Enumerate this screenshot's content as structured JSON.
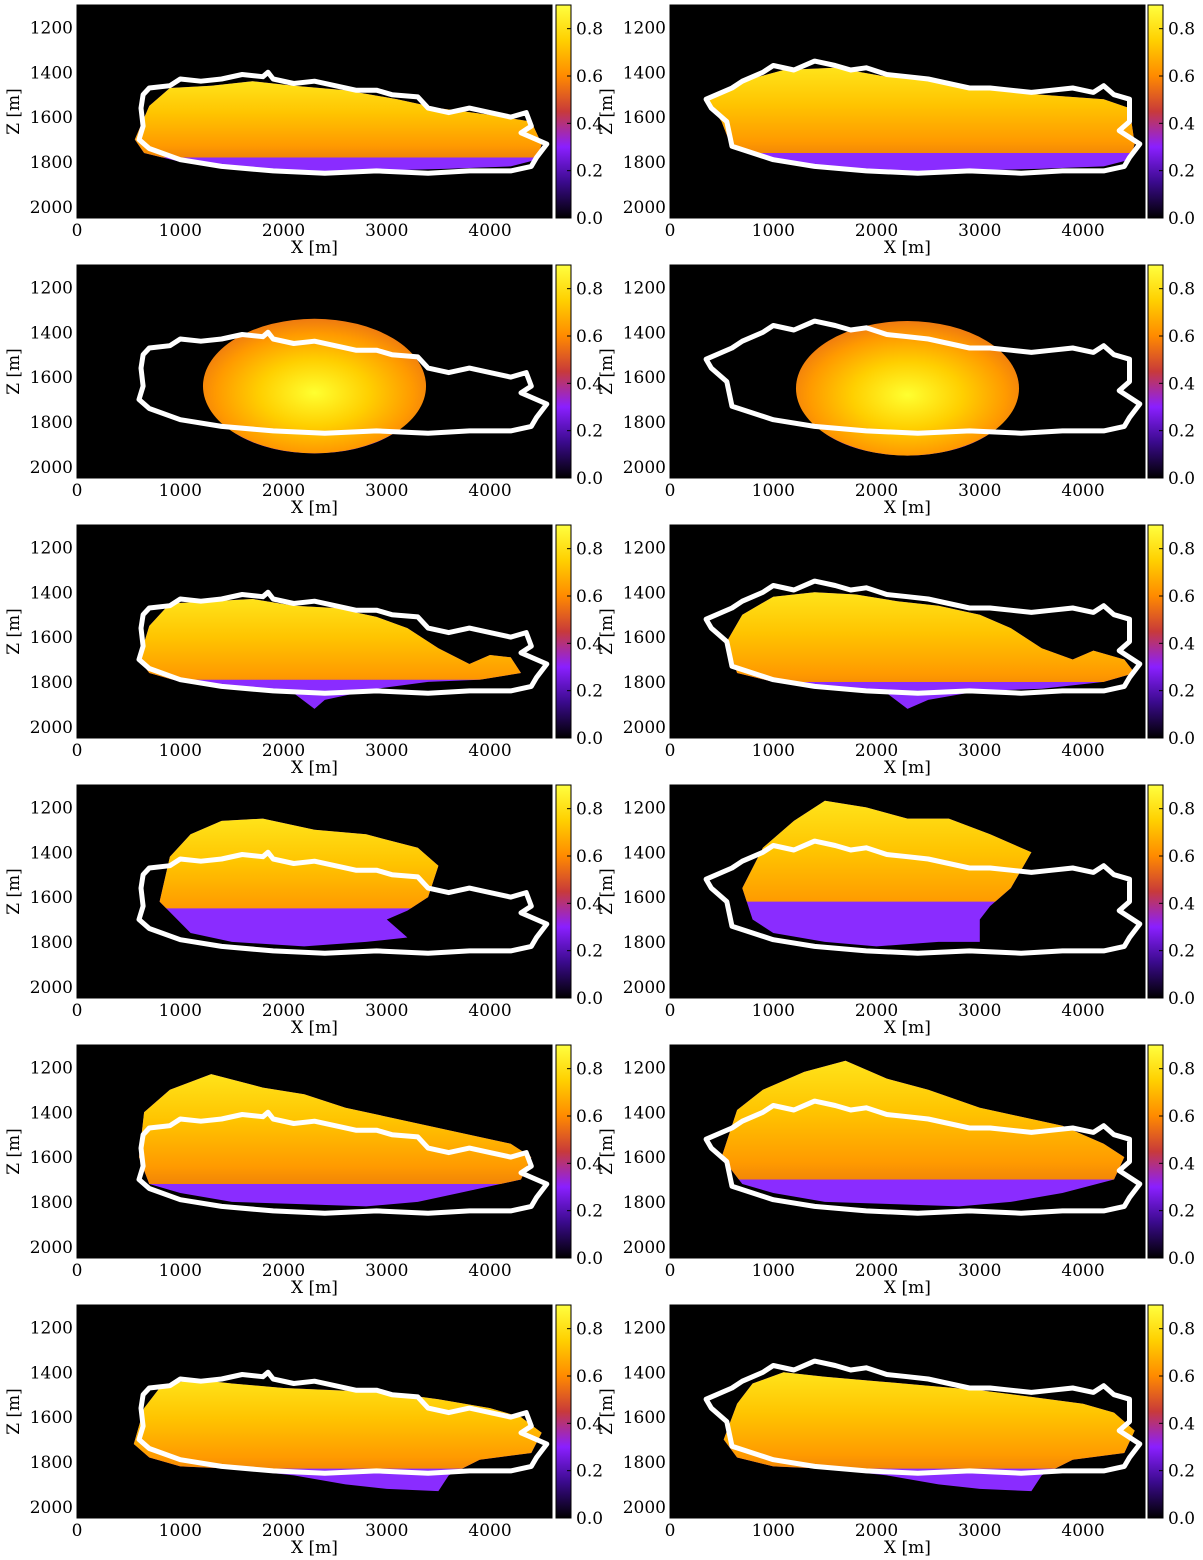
{
  "chart_data": {
    "type": "heatmap",
    "layout": {
      "rows": 6,
      "cols": 2
    },
    "shared": {
      "xlabel": "X [m]",
      "ylabel": "Z [m]",
      "xlim": [
        0,
        4600
      ],
      "ylim": [
        2050,
        1100
      ],
      "xticks": [
        0,
        1000,
        2000,
        3000,
        4000
      ],
      "yticks": [
        1200,
        1400,
        1600,
        1800,
        2000
      ],
      "colorbar": {
        "range": [
          0,
          0.9
        ],
        "ticks": [
          "0.0",
          "0.2",
          "0.4",
          "0.6",
          "0.8"
        ]
      },
      "colormap": [
        "#000000",
        "#3a0a8c",
        "#8a1fff",
        "#c83a3a",
        "#ff8a00",
        "#ffd000",
        "#ffff40"
      ],
      "background": "#000000",
      "contour_color": "#ffffff"
    },
    "reference_outline": {
      "left": [
        [
          600,
          1700
        ],
        [
          640,
          1640
        ],
        [
          620,
          1560
        ],
        [
          640,
          1500
        ],
        [
          700,
          1470
        ],
        [
          900,
          1460
        ],
        [
          1000,
          1430
        ],
        [
          1200,
          1440
        ],
        [
          1400,
          1430
        ],
        [
          1600,
          1410
        ],
        [
          1800,
          1420
        ],
        [
          1850,
          1400
        ],
        [
          1900,
          1430
        ],
        [
          2100,
          1450
        ],
        [
          2300,
          1440
        ],
        [
          2500,
          1460
        ],
        [
          2700,
          1480
        ],
        [
          2900,
          1480
        ],
        [
          3050,
          1500
        ],
        [
          3300,
          1510
        ],
        [
          3400,
          1560
        ],
        [
          3600,
          1580
        ],
        [
          3800,
          1560
        ],
        [
          4000,
          1580
        ],
        [
          4200,
          1600
        ],
        [
          4350,
          1580
        ],
        [
          4400,
          1640
        ],
        [
          4300,
          1670
        ],
        [
          4550,
          1720
        ],
        [
          4450,
          1780
        ],
        [
          4400,
          1820
        ],
        [
          4200,
          1840
        ],
        [
          3800,
          1840
        ],
        [
          3400,
          1850
        ],
        [
          2900,
          1840
        ],
        [
          2400,
          1850
        ],
        [
          1900,
          1840
        ],
        [
          1400,
          1820
        ],
        [
          1000,
          1790
        ],
        [
          700,
          1740
        ]
      ],
      "right": [
        [
          350,
          1520
        ],
        [
          600,
          1470
        ],
        [
          700,
          1440
        ],
        [
          900,
          1400
        ],
        [
          1000,
          1370
        ],
        [
          1200,
          1390
        ],
        [
          1400,
          1350
        ],
        [
          1600,
          1370
        ],
        [
          1750,
          1390
        ],
        [
          1900,
          1380
        ],
        [
          2100,
          1410
        ],
        [
          2300,
          1420
        ],
        [
          2500,
          1430
        ],
        [
          2700,
          1450
        ],
        [
          2900,
          1470
        ],
        [
          3100,
          1470
        ],
        [
          3300,
          1480
        ],
        [
          3500,
          1490
        ],
        [
          3700,
          1480
        ],
        [
          3900,
          1470
        ],
        [
          4100,
          1490
        ],
        [
          4200,
          1460
        ],
        [
          4300,
          1500
        ],
        [
          4450,
          1520
        ],
        [
          4450,
          1620
        ],
        [
          4350,
          1660
        ],
        [
          4550,
          1720
        ],
        [
          4450,
          1780
        ],
        [
          4400,
          1820
        ],
        [
          4200,
          1840
        ],
        [
          3800,
          1840
        ],
        [
          3400,
          1850
        ],
        [
          2900,
          1840
        ],
        [
          2400,
          1850
        ],
        [
          1900,
          1840
        ],
        [
          1400,
          1820
        ],
        [
          1000,
          1790
        ],
        [
          600,
          1730
        ],
        [
          550,
          1620
        ],
        [
          400,
          1560
        ]
      ]
    },
    "panels": [
      {
        "row": 1,
        "col": 1,
        "fill": [
          [
            560,
            1700
          ],
          [
            700,
            1550
          ],
          [
            900,
            1470
          ],
          [
            1300,
            1460
          ],
          [
            1700,
            1440
          ],
          [
            2100,
            1460
          ],
          [
            2600,
            1480
          ],
          [
            3100,
            1520
          ],
          [
            3500,
            1560
          ],
          [
            4000,
            1590
          ],
          [
            4400,
            1620
          ],
          [
            4500,
            1720
          ],
          [
            4450,
            1790
          ],
          [
            4200,
            1820
          ],
          [
            3600,
            1830
          ],
          [
            2800,
            1840
          ],
          [
            2100,
            1850
          ],
          [
            1500,
            1830
          ],
          [
            1000,
            1800
          ],
          [
            650,
            1760
          ]
        ],
        "purple_floor_z": 1780
      },
      {
        "row": 1,
        "col": 2,
        "fill": [
          [
            350,
            1520
          ],
          [
            700,
            1440
          ],
          [
            1100,
            1390
          ],
          [
            1600,
            1380
          ],
          [
            2100,
            1420
          ],
          [
            2600,
            1440
          ],
          [
            3100,
            1480
          ],
          [
            3600,
            1500
          ],
          [
            4200,
            1520
          ],
          [
            4450,
            1560
          ],
          [
            4500,
            1720
          ],
          [
            4450,
            1790
          ],
          [
            4200,
            1820
          ],
          [
            3600,
            1830
          ],
          [
            2800,
            1840
          ],
          [
            2100,
            1850
          ],
          [
            1500,
            1830
          ],
          [
            1000,
            1800
          ],
          [
            600,
            1740
          ],
          [
            500,
            1620
          ]
        ],
        "purple_floor_z": 1760
      },
      {
        "row": 2,
        "col": 1,
        "ellipse": {
          "cx": 2300,
          "cz": 1640,
          "rx": 1080,
          "rz": 300,
          "lower_cz": 1690,
          "lower_rz": 250
        }
      },
      {
        "row": 2,
        "col": 2,
        "ellipse": {
          "cx": 2300,
          "cz": 1650,
          "rx": 1080,
          "rz": 300,
          "lower_cz": 1700,
          "lower_rz": 250
        }
      },
      {
        "row": 3,
        "col": 1,
        "fill": [
          [
            600,
            1700
          ],
          [
            700,
            1550
          ],
          [
            900,
            1450
          ],
          [
            1300,
            1440
          ],
          [
            1700,
            1430
          ],
          [
            2100,
            1460
          ],
          [
            2500,
            1470
          ],
          [
            2900,
            1510
          ],
          [
            3200,
            1560
          ],
          [
            3500,
            1650
          ],
          [
            3800,
            1720
          ],
          [
            4000,
            1680
          ],
          [
            4200,
            1690
          ],
          [
            4300,
            1760
          ],
          [
            3900,
            1790
          ],
          [
            3400,
            1800
          ],
          [
            2900,
            1830
          ],
          [
            2400,
            1880
          ],
          [
            2300,
            1920
          ],
          [
            2100,
            1850
          ],
          [
            1500,
            1830
          ],
          [
            1000,
            1800
          ],
          [
            700,
            1760
          ]
        ],
        "purple_floor_z": 1790
      },
      {
        "row": 3,
        "col": 2,
        "fill": [
          [
            550,
            1620
          ],
          [
            700,
            1500
          ],
          [
            1000,
            1420
          ],
          [
            1400,
            1400
          ],
          [
            1800,
            1410
          ],
          [
            2200,
            1440
          ],
          [
            2600,
            1460
          ],
          [
            3000,
            1500
          ],
          [
            3300,
            1560
          ],
          [
            3600,
            1650
          ],
          [
            3900,
            1700
          ],
          [
            4100,
            1660
          ],
          [
            4400,
            1700
          ],
          [
            4500,
            1760
          ],
          [
            4200,
            1800
          ],
          [
            3600,
            1830
          ],
          [
            3000,
            1840
          ],
          [
            2500,
            1880
          ],
          [
            2300,
            1920
          ],
          [
            2100,
            1850
          ],
          [
            1500,
            1830
          ],
          [
            1000,
            1800
          ],
          [
            650,
            1760
          ]
        ],
        "purple_floor_z": 1800
      },
      {
        "row": 4,
        "col": 1,
        "fill": [
          [
            800,
            1620
          ],
          [
            900,
            1420
          ],
          [
            1100,
            1320
          ],
          [
            1400,
            1260
          ],
          [
            1800,
            1250
          ],
          [
            2300,
            1300
          ],
          [
            2800,
            1320
          ],
          [
            3300,
            1380
          ],
          [
            3500,
            1460
          ],
          [
            3400,
            1600
          ],
          [
            3200,
            1660
          ],
          [
            3000,
            1700
          ],
          [
            3200,
            1780
          ],
          [
            2800,
            1800
          ],
          [
            2200,
            1820
          ],
          [
            1500,
            1800
          ],
          [
            1100,
            1760
          ]
        ],
        "purple_floor_z": 1650
      },
      {
        "row": 4,
        "col": 2,
        "fill": [
          [
            700,
            1560
          ],
          [
            900,
            1380
          ],
          [
            1200,
            1260
          ],
          [
            1500,
            1170
          ],
          [
            1900,
            1200
          ],
          [
            2300,
            1250
          ],
          [
            2700,
            1250
          ],
          [
            3100,
            1320
          ],
          [
            3500,
            1400
          ],
          [
            3300,
            1560
          ],
          [
            3100,
            1640
          ],
          [
            3000,
            1700
          ],
          [
            3000,
            1800
          ],
          [
            2600,
            1800
          ],
          [
            2000,
            1820
          ],
          [
            1500,
            1800
          ],
          [
            1000,
            1760
          ],
          [
            800,
            1700
          ]
        ],
        "purple_floor_z": 1620
      },
      {
        "row": 5,
        "col": 1,
        "fill": [
          [
            600,
            1600
          ],
          [
            650,
            1400
          ],
          [
            900,
            1300
          ],
          [
            1300,
            1230
          ],
          [
            1800,
            1290
          ],
          [
            2200,
            1320
          ],
          [
            2600,
            1380
          ],
          [
            3000,
            1420
          ],
          [
            3400,
            1460
          ],
          [
            3800,
            1500
          ],
          [
            4200,
            1540
          ],
          [
            4400,
            1600
          ],
          [
            4300,
            1700
          ],
          [
            3700,
            1760
          ],
          [
            3300,
            1800
          ],
          [
            2800,
            1820
          ],
          [
            2200,
            1810
          ],
          [
            1500,
            1800
          ],
          [
            1000,
            1760
          ],
          [
            700,
            1720
          ]
        ],
        "purple_floor_z": 1720
      },
      {
        "row": 5,
        "col": 2,
        "fill": [
          [
            500,
            1600
          ],
          [
            650,
            1390
          ],
          [
            900,
            1300
          ],
          [
            1300,
            1220
          ],
          [
            1700,
            1170
          ],
          [
            2100,
            1250
          ],
          [
            2500,
            1300
          ],
          [
            3000,
            1380
          ],
          [
            3400,
            1420
          ],
          [
            3800,
            1460
          ],
          [
            4200,
            1540
          ],
          [
            4400,
            1600
          ],
          [
            4300,
            1700
          ],
          [
            3800,
            1760
          ],
          [
            3300,
            1800
          ],
          [
            2800,
            1820
          ],
          [
            2200,
            1810
          ],
          [
            1500,
            1800
          ],
          [
            1000,
            1760
          ],
          [
            700,
            1720
          ]
        ],
        "purple_floor_z": 1700
      },
      {
        "row": 6,
        "col": 1,
        "fill": [
          [
            550,
            1720
          ],
          [
            650,
            1560
          ],
          [
            800,
            1470
          ],
          [
            1100,
            1430
          ],
          [
            1500,
            1450
          ],
          [
            2000,
            1470
          ],
          [
            2500,
            1480
          ],
          [
            3000,
            1490
          ],
          [
            3500,
            1520
          ],
          [
            4000,
            1560
          ],
          [
            4300,
            1600
          ],
          [
            4500,
            1670
          ],
          [
            4400,
            1760
          ],
          [
            3900,
            1790
          ],
          [
            3600,
            1860
          ],
          [
            3500,
            1930
          ],
          [
            3000,
            1920
          ],
          [
            2600,
            1900
          ],
          [
            2100,
            1860
          ],
          [
            1500,
            1830
          ],
          [
            1000,
            1820
          ],
          [
            700,
            1780
          ]
        ],
        "purple_floor_z": 1830
      },
      {
        "row": 6,
        "col": 2,
        "fill": [
          [
            520,
            1700
          ],
          [
            650,
            1540
          ],
          [
            800,
            1450
          ],
          [
            1100,
            1400
          ],
          [
            1500,
            1420
          ],
          [
            2000,
            1440
          ],
          [
            2500,
            1460
          ],
          [
            3000,
            1480
          ],
          [
            3500,
            1510
          ],
          [
            4000,
            1540
          ],
          [
            4300,
            1580
          ],
          [
            4500,
            1660
          ],
          [
            4400,
            1760
          ],
          [
            3900,
            1790
          ],
          [
            3600,
            1860
          ],
          [
            3500,
            1930
          ],
          [
            3000,
            1920
          ],
          [
            2600,
            1900
          ],
          [
            2100,
            1860
          ],
          [
            1500,
            1830
          ],
          [
            1000,
            1820
          ],
          [
            650,
            1780
          ]
        ],
        "purple_floor_z": 1830
      }
    ]
  }
}
